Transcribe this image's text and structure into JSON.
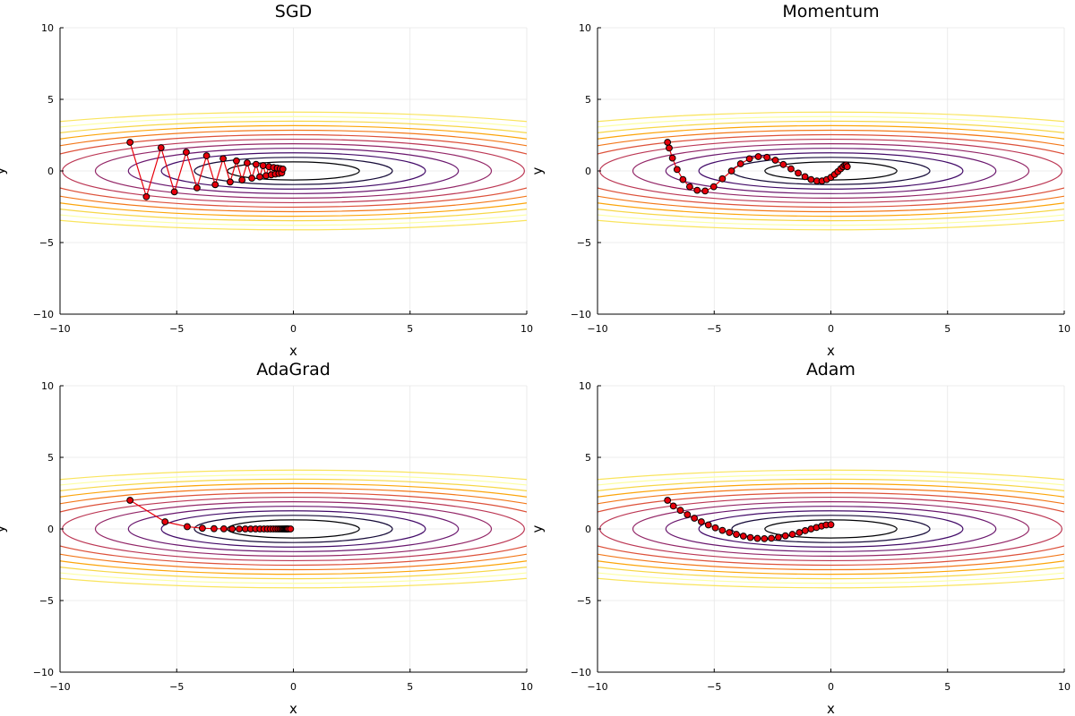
{
  "chart_data": [
    {
      "type": "line",
      "title": "SGD",
      "xlabel": "x",
      "ylabel": "y",
      "xlim": [
        -10,
        10
      ],
      "ylim": [
        -10,
        10
      ],
      "xticks": [
        "−10",
        "−5",
        "0",
        "5",
        "10"
      ],
      "yticks": [
        "−10",
        "−5",
        "0",
        "5",
        "10"
      ],
      "grid": true,
      "legend": "none",
      "contour": {
        "function": "f(x, y) = x^2/20 + y^2",
        "levels": [
          0.4,
          0.9,
          1.6,
          2.5,
          3.6,
          4.9,
          6.4,
          8.1,
          10.0,
          12.1,
          14.4,
          16.9
        ]
      },
      "series": [
        {
          "x": [
            -7.0,
            -6.3,
            -5.67,
            -5.1,
            -4.59,
            -4.13,
            -3.72,
            -3.35,
            -3.01,
            -2.71,
            -2.44,
            -2.2,
            -1.98,
            -1.78,
            -1.6,
            -1.44,
            -1.3,
            -1.17,
            -1.05,
            -0.95,
            -0.85,
            -0.77,
            -0.69,
            -0.62,
            -0.56,
            -0.5,
            -0.45
          ],
          "y": [
            2.0,
            -1.8,
            1.62,
            -1.46,
            1.31,
            -1.18,
            1.06,
            -0.96,
            0.86,
            -0.77,
            0.7,
            -0.63,
            0.56,
            -0.51,
            0.46,
            -0.41,
            0.37,
            -0.33,
            0.3,
            -0.27,
            0.24,
            -0.22,
            0.2,
            -0.18,
            0.16,
            -0.14,
            0.13
          ]
        }
      ]
    },
    {
      "type": "line",
      "title": "Momentum",
      "xlabel": "x",
      "ylabel": "y",
      "xlim": [
        -10,
        10
      ],
      "ylim": [
        -10,
        10
      ],
      "xticks": [
        "−10",
        "−5",
        "0",
        "5",
        "10"
      ],
      "yticks": [
        "−10",
        "−5",
        "0",
        "5",
        "10"
      ],
      "grid": true,
      "legend": "none",
      "contour": {
        "function": "f(x, y) = x^2/20 + y^2",
        "levels": [
          0.4,
          0.9,
          1.6,
          2.5,
          3.6,
          4.9,
          6.4,
          8.1,
          10.0,
          12.1,
          14.4,
          16.9
        ]
      },
      "series": [
        {
          "x": [
            -7.0,
            -6.93,
            -6.79,
            -6.59,
            -6.34,
            -6.05,
            -5.73,
            -5.39,
            -5.02,
            -4.65,
            -4.26,
            -3.87,
            -3.49,
            -3.11,
            -2.74,
            -2.38,
            -2.04,
            -1.71,
            -1.4,
            -1.11,
            -0.85,
            -0.6,
            -0.38,
            -0.18,
            0.0,
            0.16,
            0.3,
            0.42,
            0.52,
            0.6,
            0.66,
            0.7
          ],
          "y": [
            2.0,
            1.6,
            0.9,
            0.1,
            -0.6,
            -1.1,
            -1.35,
            -1.4,
            -1.1,
            -0.55,
            0.0,
            0.5,
            0.85,
            1.0,
            0.95,
            0.75,
            0.45,
            0.15,
            -0.15,
            -0.4,
            -0.6,
            -0.7,
            -0.7,
            -0.6,
            -0.45,
            -0.25,
            -0.05,
            0.15,
            0.3,
            0.4,
            0.42,
            0.3
          ]
        }
      ]
    },
    {
      "type": "line",
      "title": "AdaGrad",
      "xlabel": "x",
      "ylabel": "y",
      "xlim": [
        -10,
        10
      ],
      "ylim": [
        -10,
        10
      ],
      "xticks": [
        "−10",
        "−5",
        "0",
        "5",
        "10"
      ],
      "yticks": [
        "−10",
        "−5",
        "0",
        "5",
        "10"
      ],
      "grid": true,
      "legend": "none",
      "contour": {
        "function": "f(x, y) = x^2/20 + y^2",
        "levels": [
          0.4,
          0.9,
          1.6,
          2.5,
          3.6,
          4.9,
          6.4,
          8.1,
          10.0,
          12.1,
          14.4,
          16.9
        ]
      },
      "series": [
        {
          "x": [
            -7.0,
            -5.5,
            -4.55,
            -3.9,
            -3.4,
            -2.98,
            -2.62,
            -2.32,
            -2.06,
            -1.83,
            -1.62,
            -1.43,
            -1.26,
            -1.11,
            -0.98,
            -0.86,
            -0.75,
            -0.66,
            -0.58,
            -0.51,
            -0.45,
            -0.4,
            -0.36,
            -0.32,
            -0.29,
            -0.27,
            -0.25,
            -0.2,
            -0.12
          ],
          "y": [
            2.0,
            0.5,
            0.16,
            0.05,
            0.02,
            0.01,
            0.0,
            0.0,
            0.0,
            0.0,
            0.0,
            0.0,
            0.0,
            0.0,
            0.0,
            0.0,
            0.0,
            0.0,
            0.0,
            0.0,
            0.0,
            0.0,
            0.0,
            0.0,
            0.0,
            0.0,
            0.0,
            0.0,
            0.0
          ]
        }
      ]
    },
    {
      "type": "line",
      "title": "Adam",
      "xlabel": "x",
      "ylabel": "y",
      "xlim": [
        -10,
        10
      ],
      "ylim": [
        -10,
        10
      ],
      "xticks": [
        "−10",
        "−5",
        "0",
        "5",
        "10"
      ],
      "yticks": [
        "−10",
        "−5",
        "0",
        "5",
        "10"
      ],
      "grid": true,
      "legend": "none",
      "contour": {
        "function": "f(x, y) = x^2/20 + y^2",
        "levels": [
          0.4,
          0.9,
          1.6,
          2.5,
          3.6,
          4.9,
          6.4,
          8.1,
          10.0,
          12.1,
          14.4,
          16.9
        ]
      },
      "series": [
        {
          "x": [
            -7.0,
            -6.75,
            -6.45,
            -6.15,
            -5.85,
            -5.55,
            -5.25,
            -4.95,
            -4.65,
            -4.35,
            -4.05,
            -3.75,
            -3.45,
            -3.15,
            -2.85,
            -2.55,
            -2.25,
            -1.95,
            -1.65,
            -1.35,
            -1.1,
            -0.85,
            -0.62,
            -0.4,
            -0.2,
            0.0
          ],
          "y": [
            2.0,
            1.6,
            1.3,
            1.0,
            0.75,
            0.5,
            0.28,
            0.08,
            -0.1,
            -0.25,
            -0.38,
            -0.5,
            -0.6,
            -0.66,
            -0.68,
            -0.65,
            -0.58,
            -0.48,
            -0.38,
            -0.25,
            -0.12,
            0.0,
            0.1,
            0.2,
            0.28,
            0.3
          ]
        }
      ]
    }
  ]
}
